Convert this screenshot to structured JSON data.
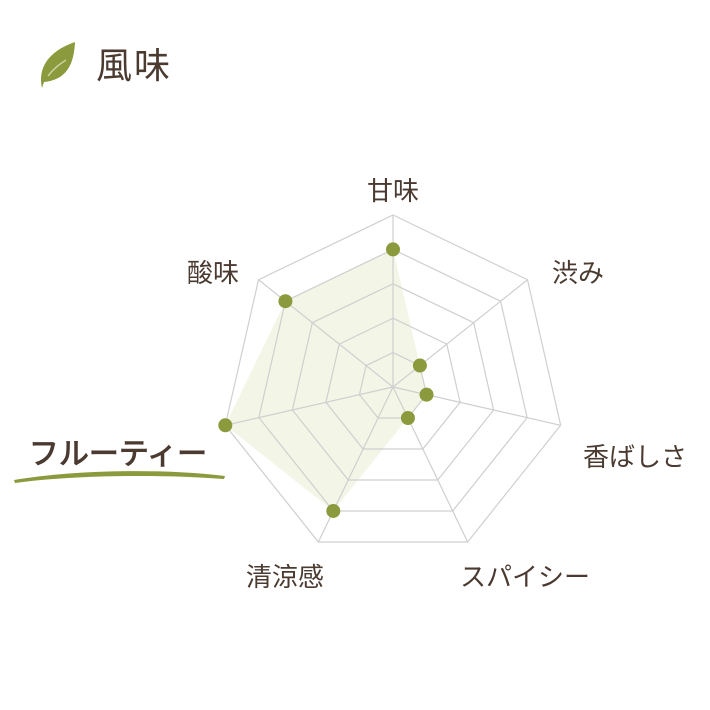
{
  "header": {
    "title": "風味",
    "icon": "leaf-icon"
  },
  "chart_data": {
    "type": "radar",
    "axes": [
      "甘味",
      "渋み",
      "香ばしさ",
      "スパイシー",
      "清涼感",
      "フルーティー",
      "酸味"
    ],
    "values": [
      4,
      1,
      1,
      1,
      4,
      5,
      4
    ],
    "range": [
      0,
      5
    ],
    "levels": 5,
    "highlighted_axis": "フルーティー",
    "colors": {
      "point": "#8a9a3c",
      "fill": "#f3f5e6",
      "grid": "#cfcfcf",
      "text": "#4a3a30",
      "accent": "#8a9a3c"
    }
  }
}
